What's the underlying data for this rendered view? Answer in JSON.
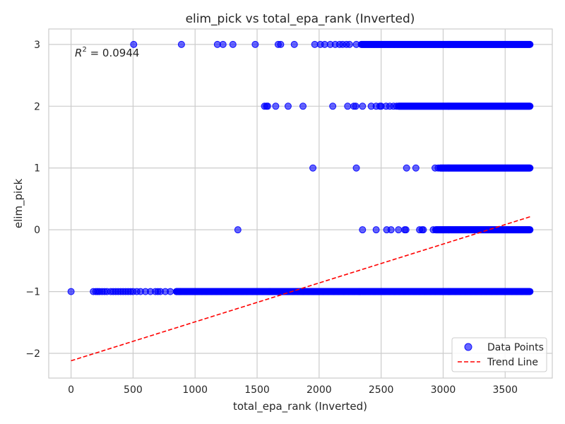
{
  "chart_data": {
    "type": "scatter",
    "title": "elim_pick vs total_epa_rank (Inverted)",
    "xlabel": "total_epa_rank (Inverted)",
    "ylabel": "elim_pick",
    "xlim": [
      -180,
      3880
    ],
    "ylim": [
      -2.4,
      3.25
    ],
    "xticks": [
      0,
      500,
      1000,
      1500,
      2000,
      2500,
      3000,
      3500
    ],
    "yticks": [
      -2,
      -1,
      0,
      1,
      2,
      3
    ],
    "ytick_labels": [
      "−2",
      "−1",
      "0",
      "1",
      "2",
      "3"
    ],
    "grid": true,
    "annotation": {
      "prefix": "R",
      "superscript": "2",
      "text": " = 0.0944"
    },
    "legend": {
      "position": "bottom-right",
      "entries": [
        {
          "label": "Data Points",
          "kind": "marker"
        },
        {
          "label": "Trend Line",
          "kind": "dashed-line"
        }
      ]
    },
    "series": [
      {
        "name": "Data Points",
        "kind": "scatter",
        "color": "#0000ff",
        "groups": [
          {
            "y": 3,
            "x": [
              505,
              890,
              1180,
              1225,
              1305,
              1485,
              1670,
              1690,
              1800,
              1965,
              2010,
              2045,
              2090,
              2130,
              2165,
              2190,
              2220,
              2245,
              2300
            ],
            "dense": [
              2340,
              3700
            ]
          },
          {
            "y": 2,
            "x": [
              1560,
              1575,
              1585,
              1650,
              1750,
              1870,
              2110,
              2230,
              2280,
              2295,
              2350,
              2420,
              2460,
              2490,
              2500,
              2540,
              2570,
              2600,
              2625
            ],
            "dense": [
              2640,
              3700
            ]
          },
          {
            "y": 1,
            "x": [
              1950,
              2300,
              2705,
              2780,
              2935,
              2960
            ],
            "dense": [
              2975,
              3700
            ]
          },
          {
            "y": 0,
            "x": [
              1345,
              2350,
              2460,
              2545,
              2580,
              2640,
              2690,
              2700,
              2810,
              2830,
              2840,
              2920
            ],
            "dense": [
              2940,
              3700
            ]
          },
          {
            "y": -1,
            "x": [
              0,
              180,
              200,
              215,
              230,
              250,
              270,
              290,
              320,
              340,
              360,
              380,
              400,
              420,
              440,
              460,
              480,
              500,
              530,
              560,
              600,
              640,
              680,
              700,
              720,
              760,
              800,
              850
            ],
            "dense": [
              850,
              3700
            ]
          }
        ]
      },
      {
        "name": "Trend Line",
        "kind": "line",
        "color": "#ff0000",
        "x": [
          0,
          3700
        ],
        "y": [
          -2.12,
          0.21
        ]
      }
    ]
  }
}
